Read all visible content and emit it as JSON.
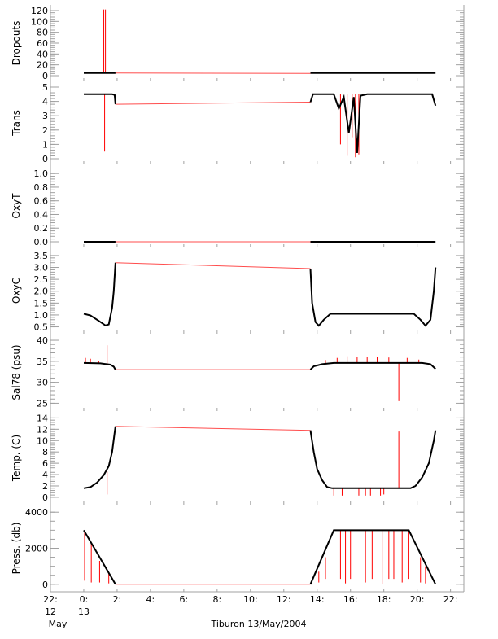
{
  "chart_data": {
    "type": "line",
    "xlabel": "Tiburon 13/May/2004",
    "xlim": [
      -2,
      22.8
    ],
    "x_ticks": [
      {
        "v": -2,
        "label": "22:",
        "sub1": "12",
        "sub2": "May"
      },
      {
        "v": 0,
        "label": "0:",
        "sub1": "13",
        "sub2": ""
      },
      {
        "v": 2,
        "label": "2:"
      },
      {
        "v": 4,
        "label": "4:"
      },
      {
        "v": 6,
        "label": "6:"
      },
      {
        "v": 8,
        "label": "8:"
      },
      {
        "v": 10,
        "label": "10:"
      },
      {
        "v": 12,
        "label": "12:"
      },
      {
        "v": 14,
        "label": "14:"
      },
      {
        "v": 16,
        "label": "16:"
      },
      {
        "v": 18,
        "label": "18:"
      },
      {
        "v": 20,
        "label": "20:"
      },
      {
        "v": 22,
        "label": "22:"
      }
    ],
    "colors": {
      "data": "#000000",
      "gap_and_spikes": "#ff0000",
      "axes": "#a0a0a0"
    },
    "panels": [
      {
        "ylabel": "Dropouts",
        "ylim": [
          0,
          120
        ],
        "yticks": [
          0,
          20,
          40,
          60,
          80,
          100,
          120
        ],
        "data": [
          [
            0,
            5
          ],
          [
            1.9,
            5
          ],
          [
            13.6,
            5
          ],
          [
            21.1,
            5
          ]
        ],
        "gap": [
          [
            1.9,
            5
          ],
          [
            13.6,
            4
          ]
        ],
        "spikes": [
          [
            1.2,
            5,
            122
          ],
          [
            1.3,
            5,
            122
          ]
        ]
      },
      {
        "ylabel": "Trans",
        "ylim": [
          0,
          5
        ],
        "yticks": [
          0,
          1,
          2,
          3,
          4,
          5
        ],
        "data": [
          [
            0,
            4.5
          ],
          [
            1.7,
            4.5
          ],
          [
            1.85,
            4.45
          ],
          [
            1.9,
            3.8
          ],
          [
            13.6,
            3.95
          ],
          [
            13.75,
            4.5
          ],
          [
            15,
            4.5
          ],
          [
            15.3,
            3.5
          ],
          [
            15.6,
            4.3
          ],
          [
            15.9,
            1.8
          ],
          [
            16.2,
            4.3
          ],
          [
            16.4,
            0.4
          ],
          [
            16.6,
            4.4
          ],
          [
            17,
            4.5
          ],
          [
            20.9,
            4.5
          ],
          [
            21.1,
            3.7
          ]
        ],
        "gap": [
          [
            1.9,
            3.8
          ],
          [
            13.6,
            3.95
          ]
        ],
        "spikes": [
          [
            1.25,
            4.5,
            0.5
          ],
          [
            15.4,
            4.5,
            1
          ],
          [
            15.8,
            4.5,
            0.2
          ],
          [
            16.1,
            4.5,
            1.5
          ],
          [
            16.3,
            4.5,
            0.1
          ],
          [
            16.5,
            4.5,
            0.3
          ]
        ]
      },
      {
        "ylabel": "OxyT",
        "ylim": [
          0,
          1.05
        ],
        "yticks": [
          0.0,
          0.2,
          0.4,
          0.6,
          0.8,
          1.0
        ],
        "decimals": 1,
        "data": [
          [
            0,
            0
          ],
          [
            1.9,
            0
          ],
          [
            13.6,
            0
          ],
          [
            21.1,
            0
          ]
        ],
        "gap": [
          [
            1.9,
            0
          ],
          [
            13.6,
            0
          ]
        ],
        "spikes": []
      },
      {
        "ylabel": "OxyC",
        "ylim": [
          0.45,
          3.6
        ],
        "yticks": [
          0.5,
          1.0,
          1.5,
          2.0,
          2.5,
          3.0,
          3.5
        ],
        "decimals": 1,
        "data": [
          [
            0,
            1.05
          ],
          [
            0.4,
            0.98
          ],
          [
            0.9,
            0.75
          ],
          [
            1.3,
            0.56
          ],
          [
            1.5,
            0.6
          ],
          [
            1.7,
            1.3
          ],
          [
            1.8,
            2.0
          ],
          [
            1.9,
            3.2
          ],
          [
            13.6,
            2.95
          ],
          [
            13.7,
            1.5
          ],
          [
            13.9,
            0.7
          ],
          [
            14.1,
            0.55
          ],
          [
            14.4,
            0.8
          ],
          [
            14.8,
            1.05
          ],
          [
            19.8,
            1.05
          ],
          [
            20.2,
            0.8
          ],
          [
            20.5,
            0.55
          ],
          [
            20.8,
            0.8
          ],
          [
            21.0,
            2.0
          ],
          [
            21.1,
            3.0
          ]
        ],
        "gap": [
          [
            1.9,
            3.2
          ],
          [
            13.6,
            2.95
          ]
        ],
        "spikes": []
      },
      {
        "ylabel": "Sal78 (psu)",
        "ylim": [
          24.5,
          40.2
        ],
        "yticks": [
          25,
          30,
          35,
          40
        ],
        "data": [
          [
            0,
            34.6
          ],
          [
            1.0,
            34.5
          ],
          [
            1.6,
            34.2
          ],
          [
            1.8,
            33.7
          ],
          [
            1.9,
            33
          ],
          [
            13.6,
            33
          ],
          [
            13.8,
            33.8
          ],
          [
            14.3,
            34.3
          ],
          [
            15,
            34.6
          ],
          [
            20.3,
            34.6
          ],
          [
            20.8,
            34.3
          ],
          [
            21.1,
            33.2
          ]
        ],
        "gap": [
          [
            1.9,
            33
          ],
          [
            13.6,
            33
          ]
        ],
        "spikes": [
          [
            0.1,
            34.6,
            35.8
          ],
          [
            0.4,
            34.6,
            35.6
          ],
          [
            0.9,
            34.5,
            35.1
          ],
          [
            1.4,
            34.3,
            38.8
          ],
          [
            14.5,
            34.5,
            35.3
          ],
          [
            15.2,
            34.6,
            35.8
          ],
          [
            15.8,
            34.6,
            36.2
          ],
          [
            16.4,
            34.6,
            36
          ],
          [
            17,
            34.6,
            36.1
          ],
          [
            17.6,
            34.6,
            36
          ],
          [
            18.3,
            34.6,
            35.9
          ],
          [
            18.9,
            34.6,
            25.5
          ],
          [
            19.4,
            34.6,
            35.8
          ],
          [
            20.1,
            34.6,
            35.4
          ]
        ]
      },
      {
        "ylabel": "Temp. (C)",
        "ylim": [
          -0.3,
          14.2
        ],
        "yticks": [
          0,
          2,
          4,
          6,
          8,
          10,
          12,
          14
        ],
        "data": [
          [
            0,
            1.6
          ],
          [
            0.4,
            1.8
          ],
          [
            0.8,
            2.6
          ],
          [
            1.2,
            3.9
          ],
          [
            1.5,
            5.5
          ],
          [
            1.7,
            8
          ],
          [
            1.9,
            12.5
          ],
          [
            13.6,
            11.8
          ],
          [
            13.8,
            8
          ],
          [
            14.0,
            5
          ],
          [
            14.3,
            3
          ],
          [
            14.6,
            1.8
          ],
          [
            14.9,
            1.6
          ],
          [
            19.6,
            1.6
          ],
          [
            19.9,
            2
          ],
          [
            20.3,
            3.5
          ],
          [
            20.7,
            6
          ],
          [
            21.0,
            10
          ],
          [
            21.1,
            11.8
          ]
        ],
        "gap": [
          [
            1.9,
            12.5
          ],
          [
            13.6,
            11.8
          ]
        ],
        "spikes": [
          [
            1.4,
            4.5,
            0.5
          ],
          [
            15,
            1.6,
            0.3
          ],
          [
            15.5,
            1.6,
            0.3
          ],
          [
            16.5,
            1.6,
            0.3
          ],
          [
            16.9,
            1.6,
            0.3
          ],
          [
            17.2,
            1.6,
            0.3
          ],
          [
            17.8,
            1.6,
            0.3
          ],
          [
            18.0,
            1.6,
            0.5
          ],
          [
            18.9,
            1.6,
            11.6
          ]
        ]
      },
      {
        "ylabel": "Press. (db)",
        "ylim": [
          -100,
          4100
        ],
        "yticks": [
          0,
          2000,
          4000
        ],
        "minor": 500,
        "data": [
          [
            0,
            3000
          ],
          [
            1.9,
            0
          ],
          [
            13.6,
            0
          ],
          [
            15.0,
            3000
          ],
          [
            19.5,
            3000
          ],
          [
            21.1,
            0
          ]
        ],
        "gap": [
          [
            1.9,
            0
          ],
          [
            13.6,
            0
          ]
        ],
        "spikes": [
          [
            0.05,
            3000,
            200
          ],
          [
            0.45,
            2250,
            100
          ],
          [
            0.95,
            1300,
            100
          ],
          [
            1.5,
            600,
            50
          ],
          [
            14.1,
            700,
            100
          ],
          [
            14.5,
            1500,
            300
          ],
          [
            15.4,
            3000,
            300
          ],
          [
            15.7,
            3000,
            50
          ],
          [
            16,
            3000,
            300
          ],
          [
            16.9,
            3000,
            100
          ],
          [
            17.3,
            3000,
            300
          ],
          [
            17.9,
            3000,
            0
          ],
          [
            18.3,
            3000,
            300
          ],
          [
            18.6,
            3000,
            300
          ],
          [
            19.1,
            3000,
            100
          ],
          [
            19.5,
            3000,
            300
          ],
          [
            20.2,
            1500,
            100
          ],
          [
            20.5,
            1000,
            50
          ]
        ]
      }
    ]
  }
}
